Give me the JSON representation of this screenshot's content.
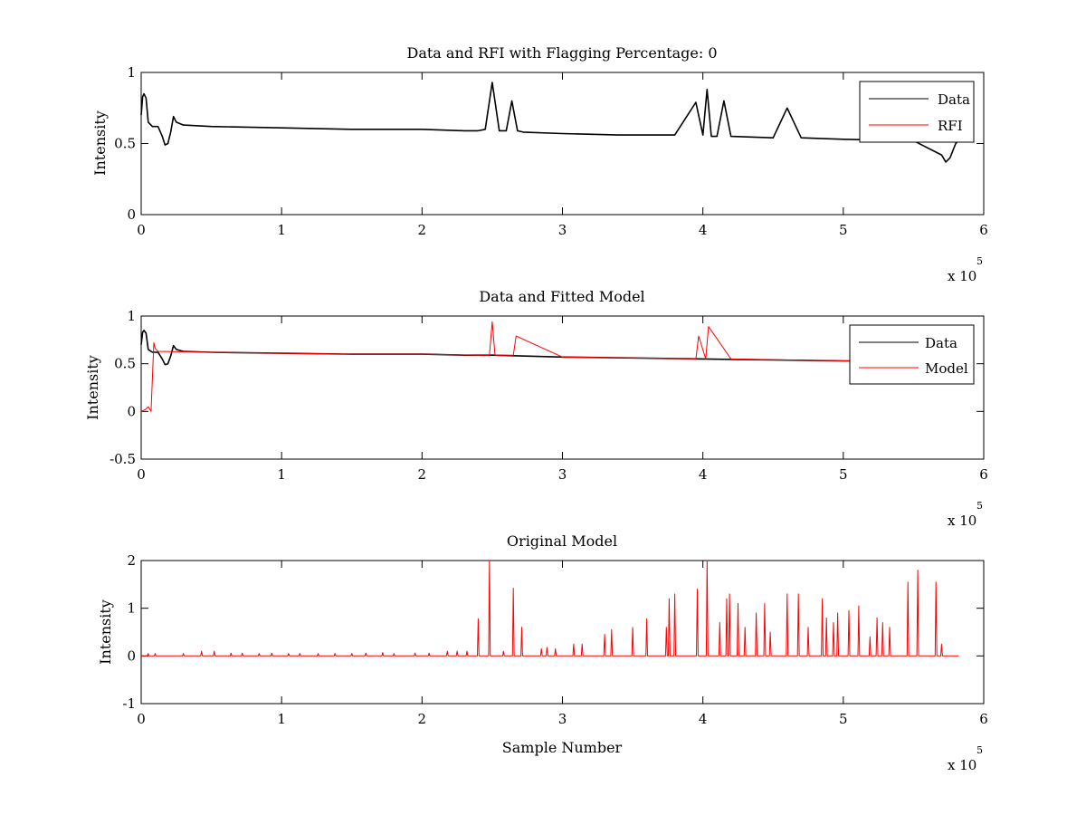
{
  "figure": {
    "background": "#ffffff",
    "colors": {
      "data": "#000000",
      "rfi": "#ff0000",
      "model": "#ff0000"
    }
  },
  "chart_data": [
    {
      "type": "line",
      "title": "Data and RFI with Flagging Percentage: 0",
      "xlabel": "",
      "ylabel": "Intensity",
      "xlim": [
        0,
        600000
      ],
      "ylim": [
        0,
        1
      ],
      "xticks": [
        0,
        1,
        2,
        3,
        4,
        5,
        6
      ],
      "x_multiplier_label": "x 10",
      "x_multiplier_exp": "5",
      "yticks": [
        0,
        0.5,
        1
      ],
      "legend": {
        "placement": "top-right",
        "entries": [
          "Data",
          "RFI"
        ]
      },
      "series": [
        {
          "name": "Data",
          "color": "#000000",
          "x": [
            0,
            1000,
            2000,
            3500,
            5000,
            8000,
            12000,
            15000,
            17000,
            19000,
            21000,
            23000,
            25000,
            30000,
            50000,
            100000,
            150000,
            200000,
            230000,
            240000,
            245000,
            250000,
            255000,
            260000,
            264000,
            268000,
            272000,
            300000,
            340000,
            380000,
            395000,
            400000,
            403000,
            406000,
            410000,
            415000,
            420000,
            450000,
            460000,
            470000,
            500000,
            550000,
            570000,
            573000,
            576000,
            580000,
            582000
          ],
          "y": [
            0.7,
            0.83,
            0.85,
            0.82,
            0.65,
            0.62,
            0.62,
            0.55,
            0.49,
            0.5,
            0.58,
            0.69,
            0.65,
            0.63,
            0.62,
            0.61,
            0.6,
            0.6,
            0.59,
            0.59,
            0.6,
            0.93,
            0.59,
            0.59,
            0.8,
            0.59,
            0.58,
            0.57,
            0.56,
            0.56,
            0.79,
            0.56,
            0.88,
            0.55,
            0.55,
            0.8,
            0.55,
            0.54,
            0.75,
            0.54,
            0.53,
            0.52,
            0.42,
            0.37,
            0.4,
            0.5,
            0.52
          ]
        },
        {
          "name": "RFI",
          "color": "#ff0000",
          "x": [],
          "y": []
        }
      ]
    },
    {
      "type": "line",
      "title": "Data and Fitted Model",
      "xlabel": "",
      "ylabel": "Intensity",
      "xlim": [
        0,
        600000
      ],
      "ylim": [
        -0.5,
        1
      ],
      "xticks": [
        0,
        1,
        2,
        3,
        4,
        5,
        6
      ],
      "x_multiplier_label": "x 10",
      "x_multiplier_exp": "5",
      "yticks": [
        -0.5,
        0,
        0.5,
        1
      ],
      "legend": {
        "placement": "top-right",
        "entries": [
          "Data",
          "Model"
        ]
      },
      "series": [
        {
          "name": "Data",
          "color": "#000000",
          "x": [
            0,
            1000,
            2000,
            3500,
            5000,
            8000,
            12000,
            15000,
            17000,
            19000,
            21000,
            23000,
            25000,
            30000,
            50000,
            100000,
            150000,
            200000,
            230000,
            250000,
            300000,
            350000,
            400000,
            450000,
            500000,
            505000
          ],
          "y": [
            0.7,
            0.83,
            0.85,
            0.82,
            0.65,
            0.62,
            0.62,
            0.55,
            0.49,
            0.5,
            0.58,
            0.69,
            0.65,
            0.63,
            0.62,
            0.61,
            0.6,
            0.6,
            0.59,
            0.59,
            0.57,
            0.56,
            0.55,
            0.54,
            0.53,
            0.53
          ]
        },
        {
          "name": "Model",
          "color": "#ff0000",
          "x": [
            0,
            3000,
            5000,
            7000,
            8000,
            9000,
            10000,
            12000,
            50000,
            100000,
            150000,
            200000,
            240000,
            248000,
            250000,
            252000,
            265000,
            267000,
            300000,
            350000,
            395000,
            397000,
            402000,
            404000,
            420000,
            460000,
            500000,
            505000
          ],
          "y": [
            0.0,
            0.02,
            0.05,
            0.0,
            0.35,
            0.72,
            0.66,
            0.63,
            0.62,
            0.61,
            0.6,
            0.6,
            0.59,
            0.59,
            0.94,
            0.59,
            0.59,
            0.79,
            0.57,
            0.56,
            0.55,
            0.79,
            0.55,
            0.89,
            0.55,
            0.54,
            0.53,
            0.53
          ]
        }
      ]
    },
    {
      "type": "line",
      "title": "Original Model",
      "xlabel": "Sample Number",
      "ylabel": "Intensity",
      "xlim": [
        0,
        600000
      ],
      "ylim": [
        -1,
        2
      ],
      "xticks": [
        0,
        1,
        2,
        3,
        4,
        5,
        6
      ],
      "x_multiplier_label": "x 10",
      "x_multiplier_exp": "5",
      "yticks": [
        -1,
        0,
        1,
        2
      ],
      "series": [
        {
          "name": "",
          "color": "#ff0000",
          "baseline": 0,
          "x_end": 582000,
          "peaks": [
            [
              5000,
              0.05
            ],
            [
              10000,
              0.05
            ],
            [
              30000,
              0.05
            ],
            [
              43000,
              0.1
            ],
            [
              52000,
              0.1
            ],
            [
              64000,
              0.06
            ],
            [
              72000,
              0.06
            ],
            [
              84000,
              0.05
            ],
            [
              93000,
              0.06
            ],
            [
              105000,
              0.05
            ],
            [
              113000,
              0.05
            ],
            [
              126000,
              0.05
            ],
            [
              138000,
              0.05
            ],
            [
              150000,
              0.05
            ],
            [
              160000,
              0.06
            ],
            [
              172000,
              0.07
            ],
            [
              180000,
              0.05
            ],
            [
              195000,
              0.06
            ],
            [
              205000,
              0.06
            ],
            [
              218000,
              0.1
            ],
            [
              225000,
              0.1
            ],
            [
              232000,
              0.1
            ],
            [
              240000,
              0.78
            ],
            [
              248000,
              2.0
            ],
            [
              258000,
              0.1
            ],
            [
              265000,
              1.42
            ],
            [
              271000,
              0.6
            ],
            [
              285000,
              0.15
            ],
            [
              289000,
              0.18
            ],
            [
              295000,
              0.15
            ],
            [
              308000,
              0.25
            ],
            [
              314000,
              0.25
            ],
            [
              330000,
              0.45
            ],
            [
              335000,
              0.55
            ],
            [
              350000,
              0.6
            ],
            [
              360000,
              0.78
            ],
            [
              374000,
              0.6
            ],
            [
              376000,
              1.2
            ],
            [
              380000,
              1.3
            ],
            [
              396000,
              1.4
            ],
            [
              403000,
              2.0
            ],
            [
              412000,
              0.7
            ],
            [
              417000,
              1.2
            ],
            [
              419000,
              1.3
            ],
            [
              425000,
              1.1
            ],
            [
              430000,
              0.6
            ],
            [
              438000,
              0.9
            ],
            [
              444000,
              1.1
            ],
            [
              448000,
              0.5
            ],
            [
              460000,
              1.3
            ],
            [
              468000,
              1.3
            ],
            [
              475000,
              0.6
            ],
            [
              485000,
              1.2
            ],
            [
              488000,
              0.8
            ],
            [
              493000,
              0.7
            ],
            [
              496000,
              0.9
            ],
            [
              504000,
              0.95
            ],
            [
              511000,
              1.05
            ],
            [
              519000,
              0.4
            ],
            [
              524000,
              0.8
            ],
            [
              528000,
              0.7
            ],
            [
              533000,
              0.6
            ],
            [
              546000,
              1.55
            ],
            [
              553000,
              1.8
            ],
            [
              566000,
              1.55
            ],
            [
              570000,
              0.25
            ]
          ]
        }
      ]
    }
  ]
}
